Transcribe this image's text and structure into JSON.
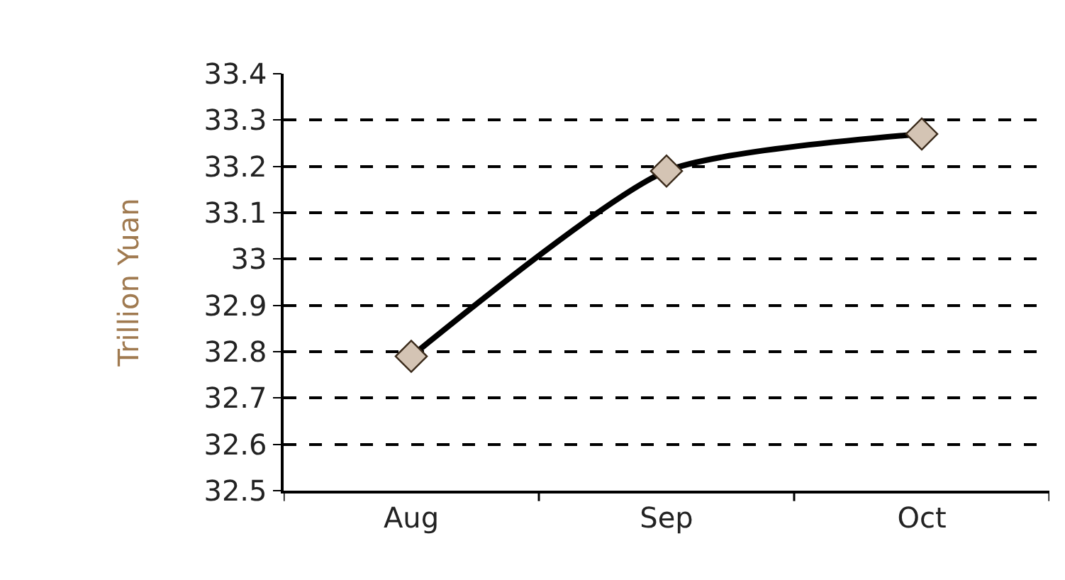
{
  "chart_data": {
    "type": "line",
    "ylabel": "Trillion Yuan",
    "categories": [
      "Aug",
      "Sep",
      "Oct"
    ],
    "series": [
      {
        "color": "#000000",
        "values": [
          32.79,
          33.19,
          33.27
        ]
      }
    ],
    "marker": "diamond",
    "line_style": "solid",
    "ylim": [
      32.5,
      33.4
    ],
    "yticks": [
      32.5,
      32.6,
      32.7,
      32.8,
      32.9,
      33,
      33.1,
      33.2,
      33.3,
      33.4
    ],
    "grid": "y",
    "legend": false
  }
}
